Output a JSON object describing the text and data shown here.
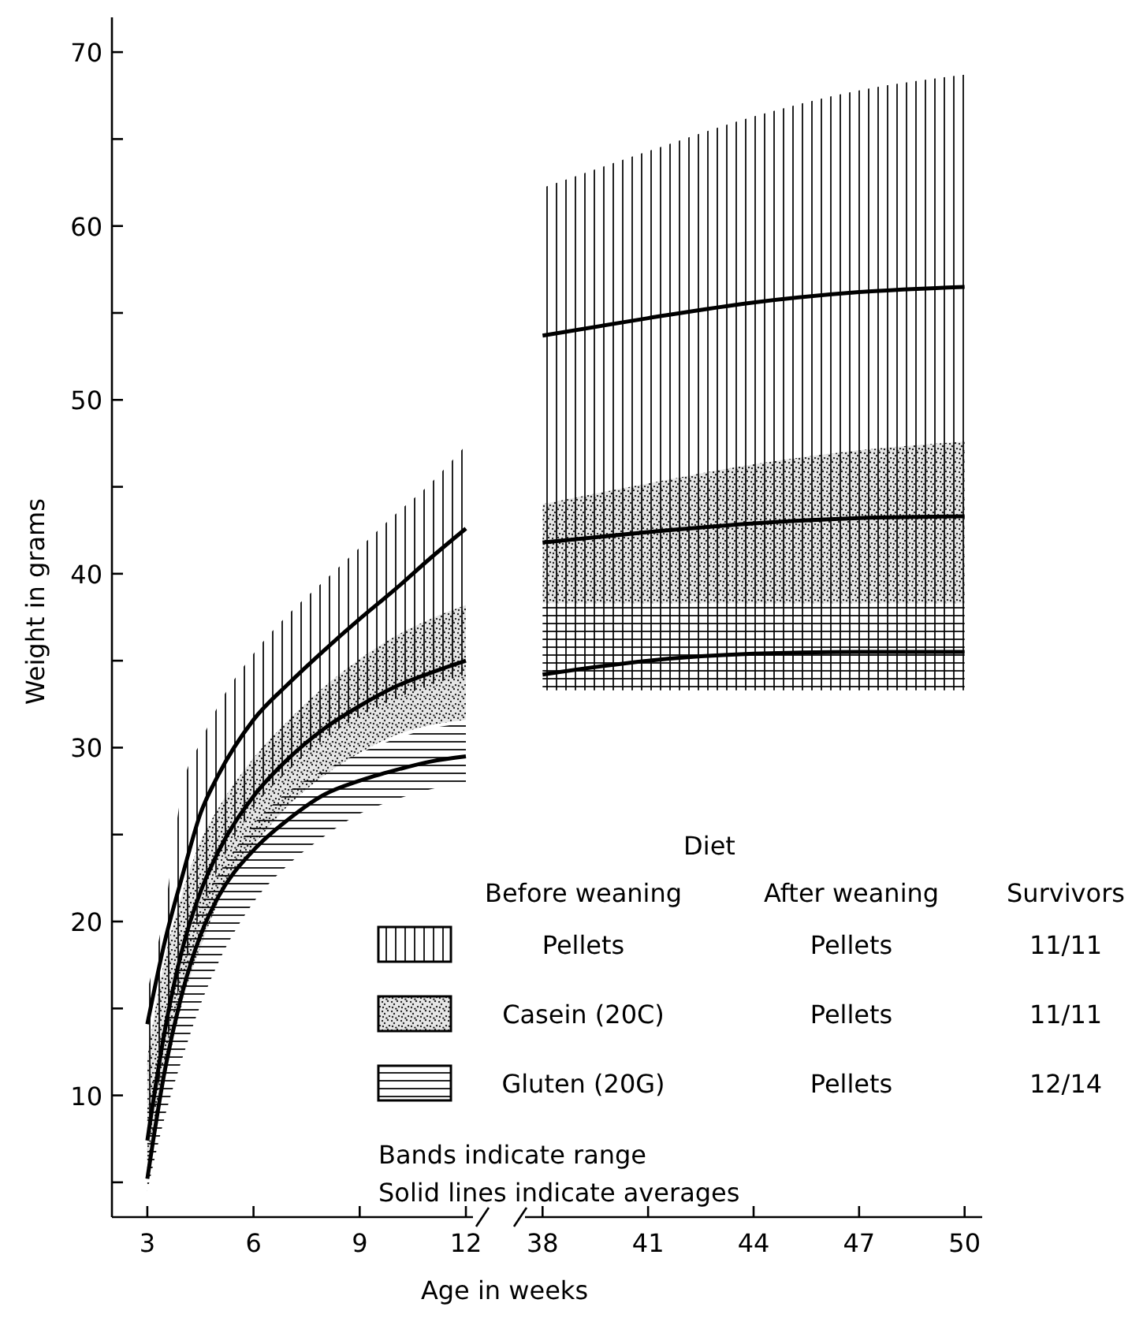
{
  "chart_data": [
    {
      "type": "line",
      "xlabel": "Age in weeks",
      "ylabel": "Weight in grams",
      "legend_title": "Diet",
      "legend": "bottom right",
      "marker": "none",
      "line_style": "solid",
      "grid": false,
      "xlim": [
        2,
        12.2
      ],
      "xticks": [
        3,
        6,
        9,
        12
      ],
      "ylim": [
        3,
        72
      ],
      "yticks": [
        {
          "value": 5,
          "label": null
        },
        10,
        {
          "value": 15,
          "label": null
        },
        20,
        {
          "value": 25,
          "label": null
        },
        30,
        {
          "value": 35,
          "label": null
        },
        40,
        {
          "value": 45,
          "label": null
        },
        50,
        {
          "value": 55,
          "label": null
        },
        60,
        {
          "value": 65,
          "label": null
        },
        70
      ],
      "x": [
        3,
        3.5,
        4,
        4.5,
        5,
        6,
        7,
        8,
        9,
        10,
        11,
        12
      ],
      "series": [
        {
          "name": "Pellets",
          "color": "#000000",
          "values": [
            14.1,
            18.9,
            22.7,
            26.2,
            28.4,
            31.6,
            33.7,
            35.6,
            37.4,
            39.1,
            40.9,
            42.6
          ],
          "lower": [
            7,
            12.5,
            17,
            20.5,
            23,
            26.5,
            28.7,
            30.5,
            31.8,
            32.8,
            33.6,
            34.2
          ],
          "upper": [
            16,
            20.8,
            27.8,
            30.3,
            32.4,
            35.4,
            37.7,
            39.6,
            41.5,
            43.4,
            45.2,
            47.4
          ]
        },
        {
          "name": "Casein (20C)",
          "color": "#000000",
          "values": [
            7.4,
            13.8,
            18.5,
            21.7,
            24,
            27.2,
            29.4,
            31.1,
            32.4,
            33.5,
            34.3,
            35
          ],
          "lower": [
            5.8,
            11,
            15.4,
            18.5,
            21.1,
            24.3,
            26.7,
            28.4,
            29.7,
            30.7,
            31.3,
            31.6
          ],
          "upper": [
            12.2,
            17.9,
            21.7,
            24.6,
            26.5,
            29.4,
            31.6,
            33.5,
            35.1,
            36.4,
            37.4,
            38.2
          ]
        },
        {
          "name": "Gluten (20G)",
          "color": "#000000",
          "values": [
            5.2,
            11.5,
            16,
            19.2,
            21.4,
            24.1,
            25.9,
            27.3,
            28.1,
            28.7,
            29.2,
            29.5
          ],
          "lower": [
            4.5,
            8.8,
            12.2,
            15.2,
            17.6,
            21.1,
            23.3,
            24.9,
            26.2,
            27,
            27.6,
            28
          ],
          "upper": [
            9,
            14.5,
            18.5,
            21,
            22.7,
            25.6,
            27.5,
            28.7,
            29.7,
            30.5,
            31.1,
            31.4
          ]
        }
      ],
      "annotations": [
        "Before weaning",
        "After weaning",
        "Survivors",
        "Pellets",
        "Pellets",
        "Pellets",
        "11/11",
        "11/11",
        "12/14",
        "Bands indicate range",
        "Solid lines indicate averages"
      ]
    },
    {
      "type": "line",
      "marker": "none",
      "line_style": "solid",
      "grid": false,
      "tick_labels": "x",
      "xlim": [
        37.5,
        50.5
      ],
      "xticks": [
        38,
        41,
        44,
        47,
        50
      ],
      "ylim": [
        3,
        72
      ],
      "x": [
        38,
        41,
        44,
        47,
        50
      ],
      "series": [
        {
          "color": "#000000",
          "values": [
            53.7,
            54.7,
            55.6,
            56.2,
            56.5
          ],
          "lower": [
            33.3,
            33.3,
            33.3,
            33.3,
            33.3
          ],
          "upper": [
            62.2,
            64.3,
            66.3,
            67.8,
            68.7
          ]
        },
        {
          "color": "#000000",
          "values": [
            41.8,
            42.4,
            42.9,
            43.2,
            43.3
          ],
          "lower": [
            38.3,
            38.3,
            38.3,
            38.3,
            38.3
          ],
          "upper": [
            44,
            45.2,
            46.3,
            47.1,
            47.6
          ]
        },
        {
          "color": "#000000",
          "values": [
            34.2,
            35,
            35.4,
            35.5,
            35.5
          ],
          "lower": [
            33.3,
            33.3,
            33.3,
            33.3,
            33.3
          ],
          "upper": [
            38.2,
            38.2,
            38.2,
            38.2,
            38.2
          ]
        }
      ]
    }
  ]
}
